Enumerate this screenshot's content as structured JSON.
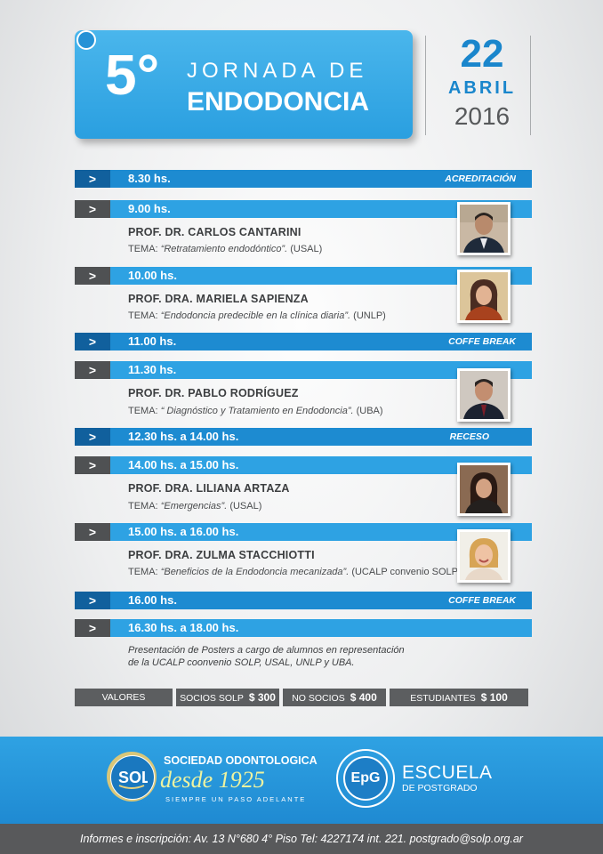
{
  "header": {
    "number": "5°",
    "line1": "JORNADA DE",
    "line2": "ENDODONCIA",
    "day": "22",
    "month": "ABRIL",
    "year": "2016"
  },
  "schedule": [
    {
      "time": "8.30 hs.",
      "tag": "ACREDITACIÓN"
    },
    {
      "time": "9.00 hs.",
      "speaker": "PROF. DR. CARLOS CANTARINI",
      "tema_label": "TEMA:",
      "tema": "“Retratamiento endodóntico”.",
      "inst": "(USAL)"
    },
    {
      "time": "10.00 hs.",
      "speaker": "PROF.  DRA. MARIELA SAPIENZA",
      "tema_label": "TEMA:",
      "tema": "“Endodoncia predecible en la clínica diaria”.",
      "inst": "(UNLP)"
    },
    {
      "time": "11.00 hs.",
      "tag": "COFFE BREAK"
    },
    {
      "time": "11.30 hs.",
      "speaker": "PROF.  DR. PABLO RODRÍGUEZ",
      "tema_label": "TEMA:",
      "tema": "“ Diagnóstico y Tratamiento en Endodoncia”.",
      "inst": "(UBA)"
    },
    {
      "time": "12.30 hs. a 14.00 hs.",
      "tag": "RECESO"
    },
    {
      "time": "14.00 hs. a 15.00 hs.",
      "speaker": "PROF.  DRA. LILIANA ARTAZA",
      "tema_label": "TEMA:",
      "tema": "“Emergencias”.",
      "inst": "(USAL)"
    },
    {
      "time": "15.00 hs. a 16.00 hs.",
      "speaker": "PROF.  DRA. ZULMA STACCHIOTTI",
      "tema_label": "TEMA:",
      "tema": "“Beneficios de la Endodoncia mecanizada”.",
      "inst": "(UCALP convenio SOLP)"
    },
    {
      "time": "16.00 hs.",
      "tag": "COFFE BREAK"
    },
    {
      "time": "16.30 hs. a 18.00 hs."
    }
  ],
  "arrow": ">",
  "note": {
    "line1": "Presentación de Posters a cargo de alumnos en representación",
    "line2": "de la UCALP coonvenio SOLP, USAL, UNLP y UBA."
  },
  "prices": {
    "valores": "VALORES",
    "socios_label": "SOCIOS SOLP",
    "socios_value": "$ 300",
    "nosocios_label": "NO SOCIOS",
    "nosocios_value": "$ 400",
    "estudiantes_label": "ESTUDIANTES",
    "estudiantes_value": "$ 100"
  },
  "footer": {
    "sol_title": "SOCIEDAD ODONTOLOGICA",
    "sol_desde": "desde 1925",
    "sol_slogan": "SIEMPRE UN PASO ADELANTE",
    "epg": "EpG",
    "escuela": "ESCUELA",
    "postgrado": "DE POSTGRADO",
    "info": "Informes e inscripción: Av. 13 N°680 4° Piso Tel: 4227174 int. 221. postgrado@solp.org.ar"
  },
  "colors": {
    "accent": "#2ea2e3",
    "dark_accent": "#1d8bd1",
    "grey": "#58595b"
  }
}
